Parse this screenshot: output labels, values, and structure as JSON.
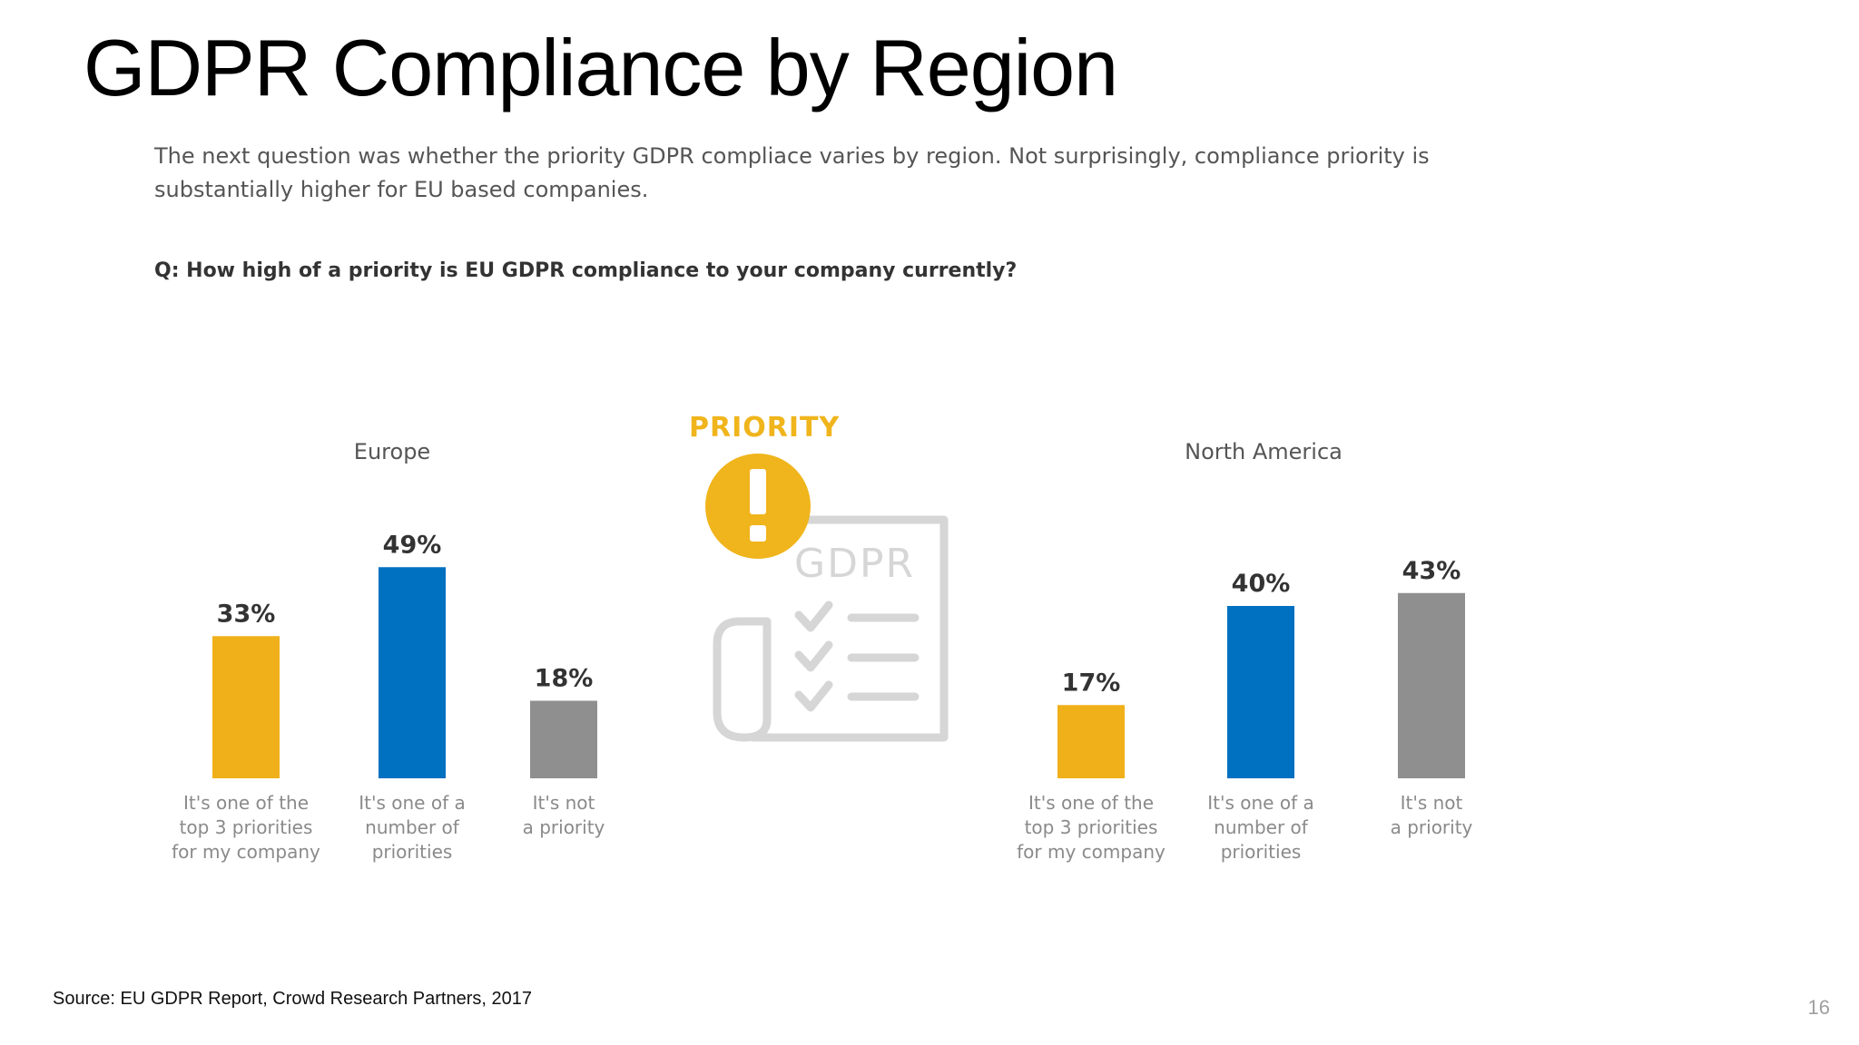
{
  "slide": {
    "title": "GDPR Compliance by Region",
    "intro": "The next question was whether the priority GDPR compliace varies by region. Not surprisingly, compliance priority is substantially higher for EU based companies.",
    "question": "Q: How high of a priority is EU GDPR compliance to your company currently?",
    "source": "Source: EU GDPR Report, Crowd Research Partners, 2017",
    "page_number": "16"
  },
  "illustration": {
    "label": "PRIORITY",
    "document_text": "GDPR",
    "icons": [
      "exclamation-icon",
      "document-icon",
      "checkmark-icon"
    ],
    "accent_color": "#f0b51c",
    "line_color": "#d6d6d6"
  },
  "chart_data": [
    {
      "type": "bar",
      "title": "Europe",
      "categories": [
        [
          "It's one of the",
          "top 3 priorities",
          "for my company"
        ],
        [
          "It's one of a",
          "number of",
          "priorities"
        ],
        [
          "It's not",
          "a priority"
        ]
      ],
      "values": [
        33,
        49,
        18
      ],
      "value_labels": [
        "33%",
        "49%",
        "18%"
      ],
      "colors": [
        "#f0b01a",
        "#0070c0",
        "#8f8f8f"
      ],
      "ylim": [
        0,
        50
      ],
      "grid": false,
      "legend": "none"
    },
    {
      "type": "bar",
      "title": "North America",
      "categories": [
        [
          "It's one of the",
          "top 3 priorities",
          "for my company"
        ],
        [
          "It's one of a",
          "number of",
          "priorities"
        ],
        [
          "It's not",
          "a priority"
        ]
      ],
      "values": [
        17,
        40,
        43
      ],
      "value_labels": [
        "17%",
        "40%",
        "43%"
      ],
      "colors": [
        "#f0b01a",
        "#0070c0",
        "#8f8f8f"
      ],
      "ylim": [
        0,
        50
      ],
      "grid": false,
      "legend": "none"
    }
  ]
}
